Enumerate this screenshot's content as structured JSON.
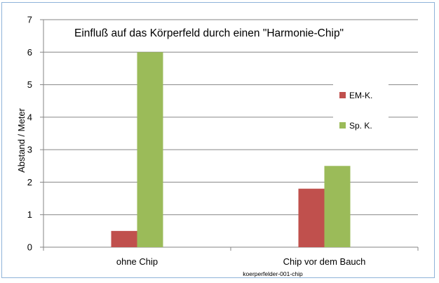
{
  "chart_data": {
    "type": "bar",
    "title": "Einfluß auf das Körperfeld durch einen \"Harmonie-Chip\"",
    "xlabel": "",
    "ylabel": "Abstand / Meter",
    "categories": [
      "ohne Chip",
      "Chip vor dem Bauch"
    ],
    "series": [
      {
        "name": "EM-K.",
        "values": [
          0.5,
          1.8
        ],
        "color": "#c0504d"
      },
      {
        "name": "Sp. K.",
        "values": [
          6,
          2.5
        ],
        "color": "#9bbb59"
      }
    ],
    "ylim": [
      0,
      7
    ],
    "yticks": [
      0,
      1,
      2,
      3,
      4,
      5,
      6,
      7
    ],
    "grid": true,
    "legend_position": "right"
  },
  "caption": "koerperfelder-001-chip",
  "colors": {
    "gridline": "#868686",
    "frame": "#8fb3d9"
  }
}
